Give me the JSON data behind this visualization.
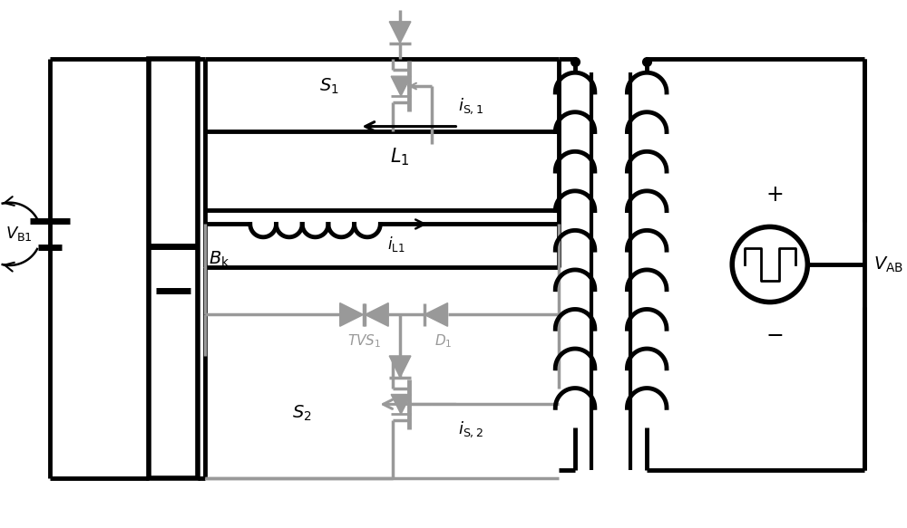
{
  "bg": "#ffffff",
  "lc": "#000000",
  "gc": "#999999",
  "lw": 3.5,
  "glw": 2.5,
  "fw": 10.0,
  "fh": 5.83
}
